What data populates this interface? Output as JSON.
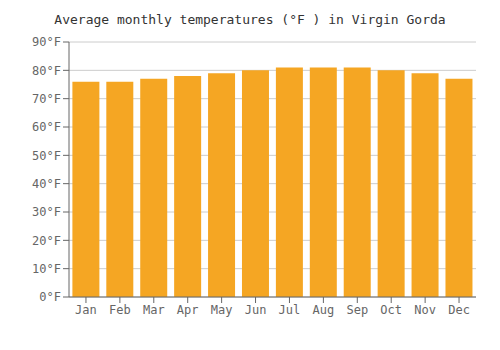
{
  "chart_data": {
    "type": "bar",
    "title": "Average monthly temperatures (°F ) in Virgin Gorda",
    "categories": [
      "Jan",
      "Feb",
      "Mar",
      "Apr",
      "May",
      "Jun",
      "Jul",
      "Aug",
      "Sep",
      "Oct",
      "Nov",
      "Dec"
    ],
    "values": [
      76,
      76,
      77,
      78,
      79,
      80,
      81,
      81,
      81,
      80,
      79,
      77
    ],
    "color": "#F5A623",
    "ylim": [
      0,
      90
    ],
    "yticks": [
      {
        "value": 0,
        "label": "0°F"
      },
      {
        "value": 10,
        "label": "10°F"
      },
      {
        "value": 20,
        "label": "20°F"
      },
      {
        "value": 30,
        "label": "30°F"
      },
      {
        "value": 40,
        "label": "40°F"
      },
      {
        "value": 50,
        "label": "50°F"
      },
      {
        "value": 60,
        "label": "60°F"
      },
      {
        "value": 70,
        "label": "70°F"
      },
      {
        "value": 80,
        "label": "80°F"
      },
      {
        "value": 90,
        "label": "90°F"
      }
    ],
    "grid": true
  }
}
